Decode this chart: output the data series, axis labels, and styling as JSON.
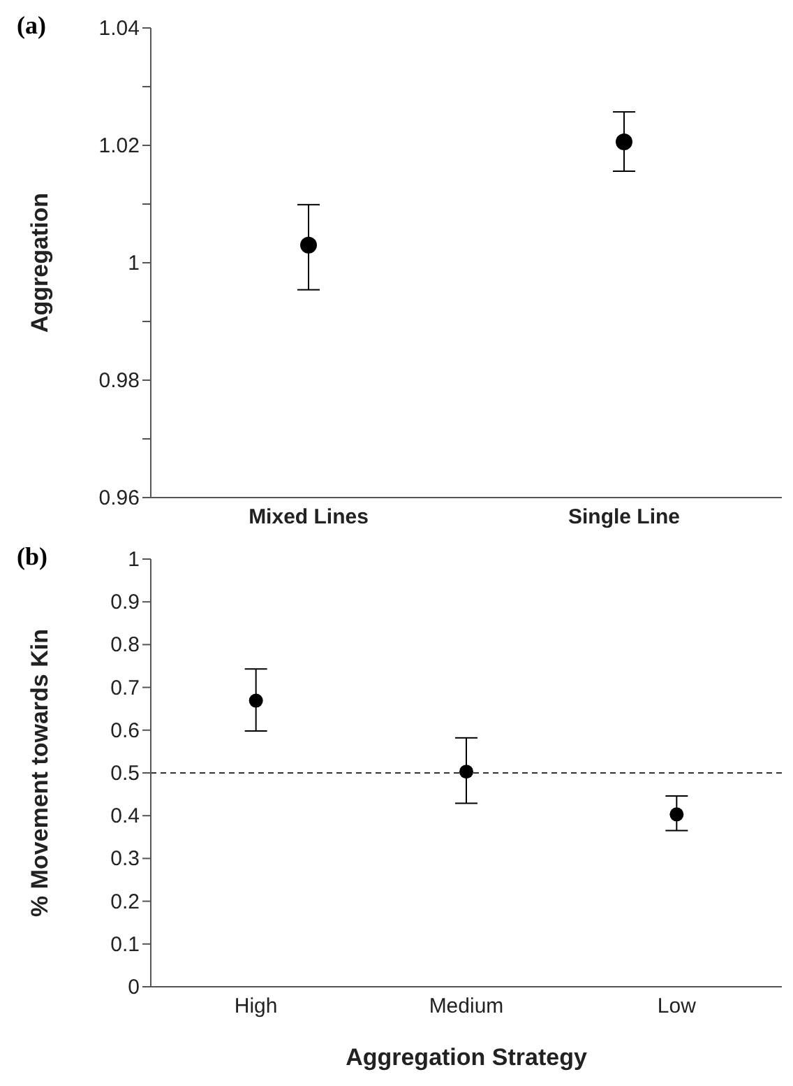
{
  "chart_data": [
    {
      "type": "scatter",
      "title": "(a)",
      "ylabel": "Aggregation",
      "categories": [
        "Mixed Lines",
        "Single Line"
      ],
      "series": [
        {
          "color": "#000000",
          "values": [
            1.003,
            1.0206
          ],
          "errors": [
            [
              0.9954,
              1.0099
            ],
            [
              1.0156,
              1.0257
            ]
          ]
        }
      ],
      "ylim": [
        0.96,
        1.04
      ],
      "yticks": [
        0.96,
        {
          "value": 0.97,
          "label": null
        },
        0.98,
        {
          "value": 0.99,
          "label": null
        },
        1,
        {
          "value": 1.01,
          "label": null
        },
        1.02,
        {
          "value": 1.03,
          "label": null
        },
        1.04
      ],
      "grid": false,
      "legend": false,
      "marker": "circle"
    },
    {
      "type": "scatter",
      "title": "(b)",
      "xlabel": "Aggregation Strategy",
      "ylabel": "% Movement towards Kin",
      "categories": [
        "High",
        "Medium",
        "Low"
      ],
      "series": [
        {
          "color": "#000000",
          "values": [
            0.669,
            0.503,
            0.403
          ],
          "errors": [
            [
              0.598,
              0.743
            ],
            [
              0.429,
              0.582
            ],
            [
              0.365,
              0.446
            ]
          ]
        }
      ],
      "ylim": [
        0,
        1
      ],
      "yticks": [
        0,
        0.1,
        0.2,
        0.3,
        0.4,
        0.5,
        0.6,
        0.7,
        0.8,
        0.9,
        1
      ],
      "ref_lines": [
        {
          "axis": "y",
          "value": 0.5,
          "line_style": "dashed"
        }
      ],
      "grid": false,
      "legend": false,
      "marker": "circle"
    }
  ]
}
